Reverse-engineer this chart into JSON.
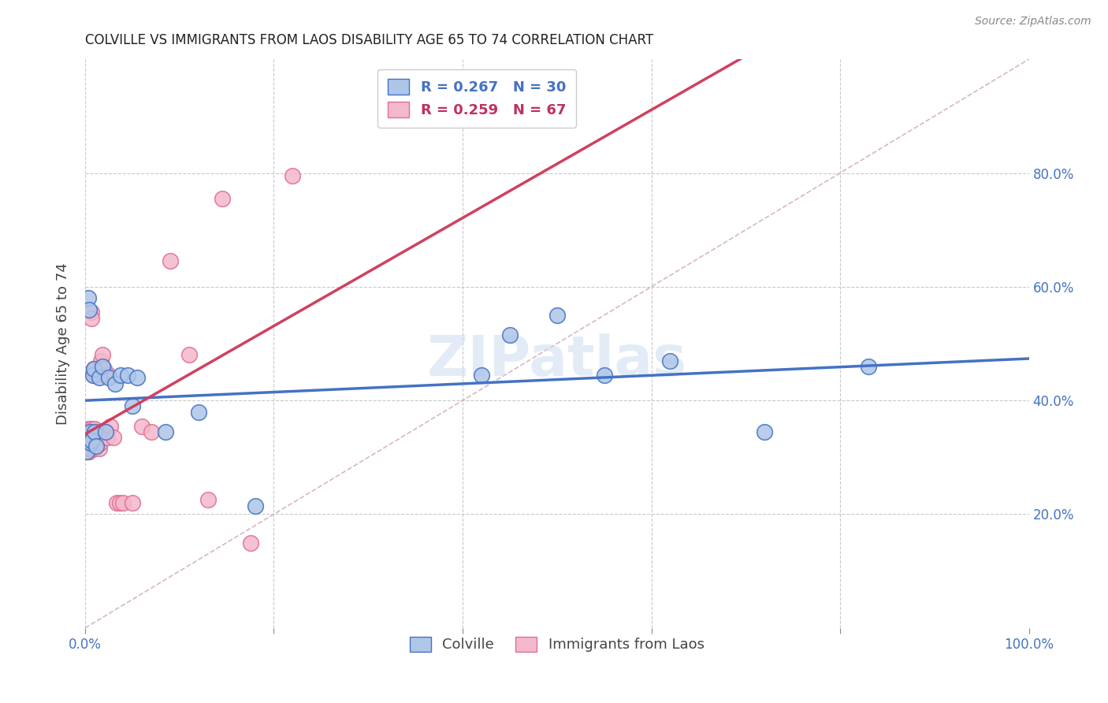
{
  "title": "COLVILLE VS IMMIGRANTS FROM LAOS DISABILITY AGE 65 TO 74 CORRELATION CHART",
  "source": "Source: ZipAtlas.com",
  "ylabel": "Disability Age 65 to 74",
  "xlim": [
    0,
    1.0
  ],
  "ylim": [
    0,
    1.0
  ],
  "colville_color": "#aec6e8",
  "laos_color": "#f4b8cc",
  "colville_edge_color": "#4472c4",
  "laos_edge_color": "#e07090",
  "colville_line_color": "#4472c4",
  "laos_line_color": "#d04060",
  "diagonal_color": "#c8a0b0",
  "legend_R1": "R = 0.267",
  "legend_N1": "N = 30",
  "legend_R2": "R = 0.259",
  "legend_N2": "N = 67",
  "legend_color1": "#4472c4",
  "legend_color2": "#c03060",
  "watermark": "ZIPatlas",
  "background_color": "#ffffff",
  "grid_color": "#bbbbbb",
  "colville_x": [
    0.001,
    0.002,
    0.003,
    0.004,
    0.005,
    0.006,
    0.007,
    0.008,
    0.009,
    0.01,
    0.012,
    0.015,
    0.018,
    0.022,
    0.025,
    0.032,
    0.038,
    0.045,
    0.05,
    0.055,
    0.085,
    0.12,
    0.18,
    0.42,
    0.45,
    0.5,
    0.55,
    0.62,
    0.72,
    0.83
  ],
  "colville_y": [
    0.335,
    0.31,
    0.58,
    0.56,
    0.345,
    0.325,
    0.33,
    0.445,
    0.455,
    0.345,
    0.32,
    0.44,
    0.46,
    0.345,
    0.44,
    0.43,
    0.445,
    0.445,
    0.39,
    0.44,
    0.345,
    0.38,
    0.215,
    0.445,
    0.515,
    0.55,
    0.445,
    0.47,
    0.345,
    0.46
  ],
  "laos_x": [
    0.001,
    0.001,
    0.001,
    0.002,
    0.002,
    0.003,
    0.003,
    0.003,
    0.004,
    0.004,
    0.004,
    0.004,
    0.005,
    0.005,
    0.005,
    0.005,
    0.006,
    0.006,
    0.006,
    0.006,
    0.007,
    0.007,
    0.007,
    0.007,
    0.007,
    0.008,
    0.008,
    0.008,
    0.009,
    0.009,
    0.009,
    0.01,
    0.01,
    0.01,
    0.01,
    0.01,
    0.011,
    0.011,
    0.012,
    0.012,
    0.013,
    0.013,
    0.014,
    0.015,
    0.016,
    0.017,
    0.018,
    0.019,
    0.02,
    0.021,
    0.022,
    0.023,
    0.025,
    0.027,
    0.03,
    0.033,
    0.037,
    0.04,
    0.05,
    0.06,
    0.07,
    0.09,
    0.11,
    0.13,
    0.145,
    0.175,
    0.22
  ],
  "laos_y": [
    0.31,
    0.325,
    0.34,
    0.315,
    0.33,
    0.345,
    0.32,
    0.35,
    0.31,
    0.325,
    0.335,
    0.345,
    0.315,
    0.325,
    0.335,
    0.34,
    0.315,
    0.325,
    0.33,
    0.345,
    0.555,
    0.545,
    0.345,
    0.33,
    0.35,
    0.325,
    0.335,
    0.345,
    0.445,
    0.455,
    0.345,
    0.315,
    0.325,
    0.335,
    0.34,
    0.35,
    0.445,
    0.455,
    0.335,
    0.345,
    0.325,
    0.335,
    0.345,
    0.315,
    0.325,
    0.47,
    0.48,
    0.445,
    0.455,
    0.335,
    0.345,
    0.335,
    0.445,
    0.355,
    0.335,
    0.22,
    0.22,
    0.22,
    0.22,
    0.355,
    0.345,
    0.645,
    0.48,
    0.225,
    0.755,
    0.15,
    0.795
  ]
}
